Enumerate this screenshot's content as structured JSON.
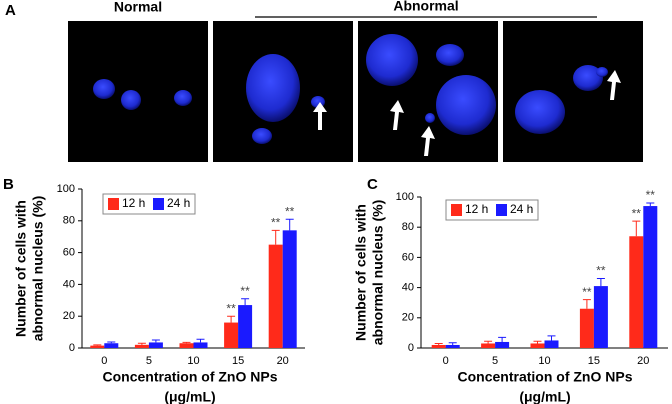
{
  "panel_a": {
    "label": "A",
    "titles": [
      "Normal",
      "Abnormal"
    ]
  },
  "chart_data": [
    {
      "type": "bar",
      "panel": "B",
      "ylabel": [
        "Number of cells with",
        "abnormal nucleus (%)"
      ],
      "xlabel": [
        "Concentration of ZnO NPs",
        "(μg/mL)"
      ],
      "categories": [
        "0",
        "5",
        "10",
        "15",
        "20"
      ],
      "ylim": [
        0,
        100
      ],
      "yticks": [
        0,
        20,
        40,
        60,
        80,
        100
      ],
      "legend": "upper left",
      "series": [
        {
          "name": "12 h",
          "color": "#ff2a1a",
          "values": [
            1.5,
            2,
            3,
            16,
            65
          ],
          "errors": [
            0.5,
            1,
            0.5,
            4,
            9
          ],
          "significance": [
            null,
            null,
            null,
            "**",
            "**"
          ]
        },
        {
          "name": "24 h",
          "color": "#1a1aff",
          "values": [
            3,
            3.5,
            3.5,
            27,
            74
          ],
          "errors": [
            0.8,
            1.5,
            2,
            4,
            7
          ],
          "significance": [
            null,
            null,
            null,
            "**",
            "**"
          ]
        }
      ]
    },
    {
      "type": "bar",
      "panel": "C",
      "ylabel": [
        "Number of cells with",
        "abnormal nucleus (%)"
      ],
      "xlabel": [
        "Concentration of ZnO NPs",
        "(μg/mL)"
      ],
      "categories": [
        "0",
        "5",
        "10",
        "15",
        "20"
      ],
      "ylim": [
        0,
        100
      ],
      "yticks": [
        0,
        20,
        40,
        60,
        80,
        100
      ],
      "legend": "upper left",
      "series": [
        {
          "name": "12 h",
          "color": "#ff2a1a",
          "values": [
            2,
            3,
            3,
            26,
            74
          ],
          "errors": [
            1,
            1.5,
            1.5,
            6,
            10
          ],
          "significance": [
            null,
            null,
            null,
            "**",
            "**"
          ]
        },
        {
          "name": "24 h",
          "color": "#1a1aff",
          "values": [
            2,
            4,
            5,
            41,
            94
          ],
          "errors": [
            1.5,
            3,
            3,
            5,
            2
          ],
          "significance": [
            null,
            null,
            null,
            "**",
            "**"
          ]
        }
      ]
    }
  ]
}
